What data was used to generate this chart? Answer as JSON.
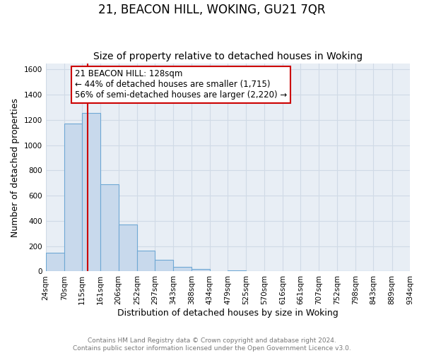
{
  "title": "21, BEACON HILL, WOKING, GU21 7QR",
  "subtitle": "Size of property relative to detached houses in Woking",
  "xlabel": "Distribution of detached houses by size in Woking",
  "ylabel": "Number of detached properties",
  "bin_edges": [
    24,
    70,
    115,
    161,
    206,
    252,
    297,
    343,
    388,
    434,
    479,
    525,
    570,
    616,
    661,
    707,
    752,
    798,
    843,
    889,
    934
  ],
  "bar_heights": [
    150,
    1170,
    1255,
    690,
    370,
    163,
    93,
    38,
    22,
    0,
    10,
    0,
    0,
    0,
    0,
    0,
    0,
    0,
    0,
    0
  ],
  "bar_color": "#c8d9ec",
  "bar_edge_color": "#6fa8d4",
  "property_line_x": 128,
  "property_line_color": "#cc0000",
  "annotation_text": "21 BEACON HILL: 128sqm\n← 44% of detached houses are smaller (1,715)\n56% of semi-detached houses are larger (2,220) →",
  "annotation_box_color": "#ffffff",
  "annotation_box_edge": "#cc0000",
  "ylim": [
    0,
    1650
  ],
  "yticks": [
    0,
    200,
    400,
    600,
    800,
    1000,
    1200,
    1400,
    1600
  ],
  "footer1": "Contains HM Land Registry data © Crown copyright and database right 2024.",
  "footer2": "Contains public sector information licensed under the Open Government Licence v3.0.",
  "background_color": "#ffffff",
  "plot_bg_color": "#e8eef5",
  "grid_color": "#d0dae6",
  "title_fontsize": 12,
  "subtitle_fontsize": 10,
  "axis_label_fontsize": 9,
  "tick_fontsize": 7.5,
  "annotation_fontsize": 8.5,
  "footer_fontsize": 6.5
}
